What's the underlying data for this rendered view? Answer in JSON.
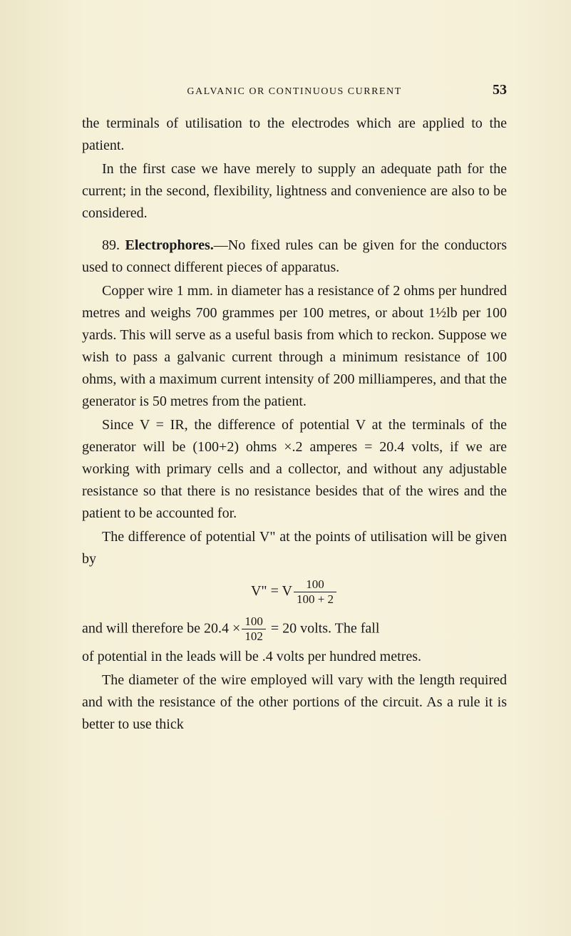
{
  "colors": {
    "background": "#f5f0d8",
    "text": "#1a1a1a"
  },
  "typography": {
    "body_fontsize": 20,
    "body_lineheight": 1.55,
    "header_fontsize": 14,
    "pagenum_fontsize": 20
  },
  "header": {
    "title": "GALVANIC OR CONTINUOUS CURRENT",
    "page_number": "53"
  },
  "paragraphs": {
    "p1": "the terminals of utilisation to the electrodes which are applied to the patient.",
    "p2": "In the first case we have merely to supply an adequate path for the current; in the second, flexibility, lightness and convenience are also to be considered.",
    "p3a": "89.  ",
    "p3b": "Electrophores.",
    "p3c": "—No fixed rules can be given for the conductors used to connect different pieces of apparatus.",
    "p4": "Copper wire 1 mm. in diameter has a resistance of 2 ohms per hundred metres and weighs 700 grammes per 100 metres, or about 1½lb per 100 yards. This will serve as a useful basis from which to reckon. Suppose we wish to pass a galvanic current through a minimum resistance of 100 ohms, with a maximum current intensity of 200 milliamperes, and that the generator is 50 metres from the patient.",
    "p5": "Since V = IR, the difference of potential V at the terminals of the generator will be (100+2) ohms ×.2 amperes = 20.4 volts, if we are working with primary cells and a collector, and without any adjustable resistance so that there is no resistance besides that of the wires and the patient to be accounted for.",
    "p6": "The difference of potential V\" at the points of utilisation will be given by",
    "eq1_left": "V\" = V",
    "eq1_num": "100",
    "eq1_den": "100 + 2",
    "p7a": "and will therefore be 20.4 ×",
    "p7_num": "100",
    "p7_den": "102",
    "p7b": "= 20 volts.  The fall",
    "p8": "of potential in the leads will be .4 volts per hundred metres.",
    "p9": "The diameter of the wire employed will vary with the length required and with the resistance of the other portions of the circuit. As a rule it is better to use thick"
  }
}
